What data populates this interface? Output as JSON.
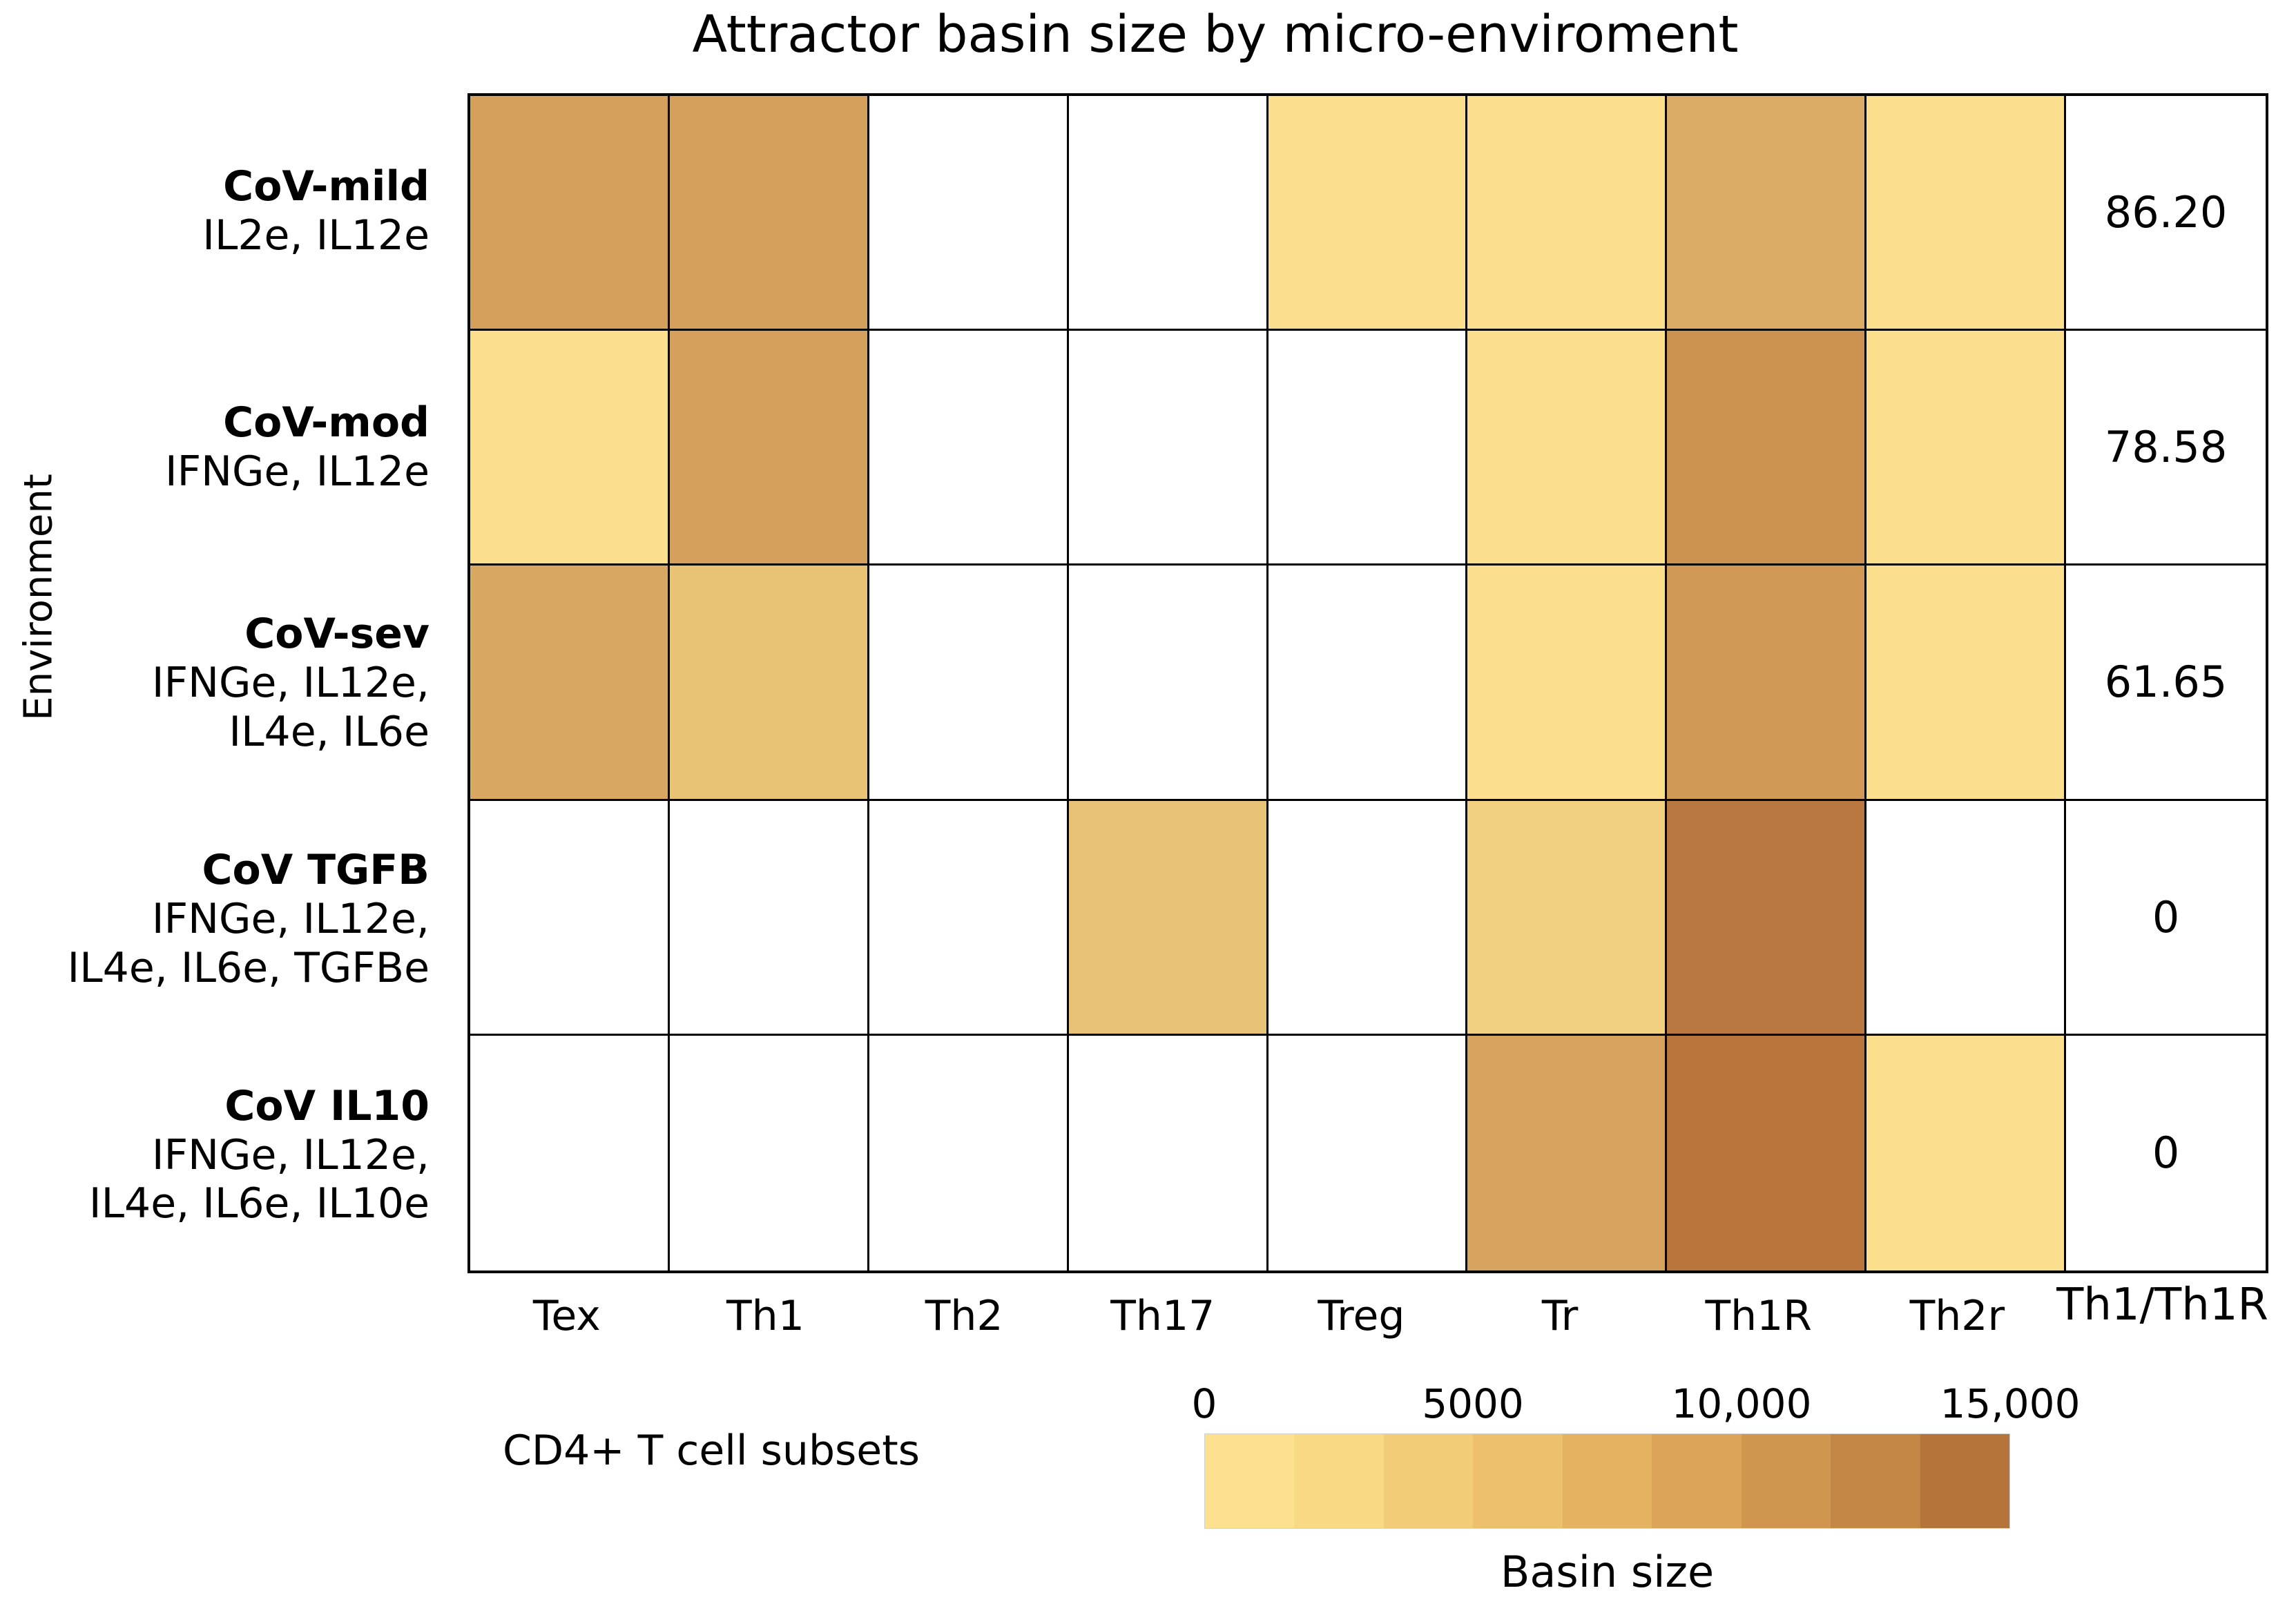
{
  "title": "Attractor basin size by micro-enviroment",
  "axes": {
    "y_label": "Environment",
    "x_label": "CD4+ T cell subsets"
  },
  "columns": [
    "Tex",
    "Th1",
    "Th2",
    "Th17",
    "Treg",
    "Tr",
    "Th1R",
    "Th2r",
    "Th1/Th1R"
  ],
  "rows": [
    {
      "name": "CoV-mild",
      "cytokine_lines": [
        "IL2e, IL12e"
      ],
      "ratio": "86.20"
    },
    {
      "name": "CoV-mod",
      "cytokine_lines": [
        "IFNGe, IL12e"
      ],
      "ratio": "78.58"
    },
    {
      "name": "CoV-sev",
      "cytokine_lines": [
        "IFNGe, IL12e,",
        "IL4e, IL6e"
      ],
      "ratio": "61.65"
    },
    {
      "name": "CoV TGFB",
      "cytokine_lines": [
        "IFNGe, IL12e,",
        "IL4e, IL6e, TGFBe"
      ],
      "ratio": "0"
    },
    {
      "name": "CoV IL10",
      "cytokine_lines": [
        "IFNGe, IL12e,",
        "IL4e, IL6e, IL10e"
      ],
      "ratio": "0"
    }
  ],
  "cell_colors": [
    [
      "#D5A05C",
      "#D5A05C",
      "#FFFFFF",
      "#FFFFFF",
      "#FBDF8D",
      "#FBDF8D",
      "#DBAC66",
      "#FBDF8D"
    ],
    [
      "#FBDF8D",
      "#D5A05C",
      "#FFFFFF",
      "#FFFFFF",
      "#FFFFFF",
      "#FBDF8D",
      "#CB9150",
      "#FBDF8D"
    ],
    [
      "#D8A761",
      "#E8C275",
      "#FFFFFF",
      "#FFFFFF",
      "#FFFFFF",
      "#FBDF8D",
      "#D09A56",
      "#FBDF8D"
    ],
    [
      "#FFFFFF",
      "#FFFFFF",
      "#FFFFFF",
      "#E8C276",
      "#FFFFFF",
      "#F2D080",
      "#BA7841",
      "#FFFFFF"
    ],
    [
      "#FFFFFF",
      "#FFFFFF",
      "#FFFFFF",
      "#FFFFFF",
      "#FFFFFF",
      "#D6A35F",
      "#B7743B",
      "#FBDF8D"
    ]
  ],
  "colorbar": {
    "label": "Basin size",
    "tick_labels": [
      "0",
      "5000",
      "10,000",
      "15,000"
    ],
    "segment_colors": [
      "#FCE28F",
      "#F9D983",
      "#F3CC77",
      "#EDC06C",
      "#E5B261",
      "#DCA458",
      "#D0954E",
      "#C48645",
      "#B4743A"
    ]
  },
  "chart_data": {
    "type": "heatmap",
    "title": "Attractor basin size by micro-enviroment",
    "xlabel": "CD4+ T cell subsets",
    "ylabel": "Environment",
    "columns": [
      "Tex",
      "Th1",
      "Th2",
      "Th17",
      "Treg",
      "Tr",
      "Th1R",
      "Th2r"
    ],
    "rows": [
      "CoV-mild (IL2e, IL12e)",
      "CoV-mod (IFNGe, IL12e)",
      "CoV-sev (IFNGe, IL12e, IL4e, IL6e)",
      "CoV TGFB (IFNGe, IL12e, IL4e, IL6e, TGFBe)",
      "CoV IL10 (IFNGe, IL12e, IL4e, IL6e, IL10e)"
    ],
    "values_estimated_from_color": [
      [
        8700,
        8700,
        0,
        0,
        1500,
        1500,
        7500,
        1500
      ],
      [
        1500,
        8700,
        0,
        0,
        0,
        1500,
        10300,
        1500
      ],
      [
        8300,
        5800,
        0,
        0,
        0,
        1500,
        9500,
        1500
      ],
      [
        0,
        0,
        0,
        5800,
        0,
        4000,
        13000,
        0
      ],
      [
        0,
        0,
        0,
        0,
        0,
        8500,
        13200,
        1600
      ]
    ],
    "ratio_column": {
      "label": "Th1/Th1R",
      "values": [
        86.2,
        78.58,
        61.65,
        0,
        0
      ]
    },
    "colorbar": {
      "label": "Basin size",
      "range": [
        0,
        15000
      ],
      "tick_values": [
        0,
        5000,
        10000,
        15000
      ],
      "discrete_segments": 9
    },
    "legend_position": "bottom",
    "zero_cells_rendered_white": true
  }
}
